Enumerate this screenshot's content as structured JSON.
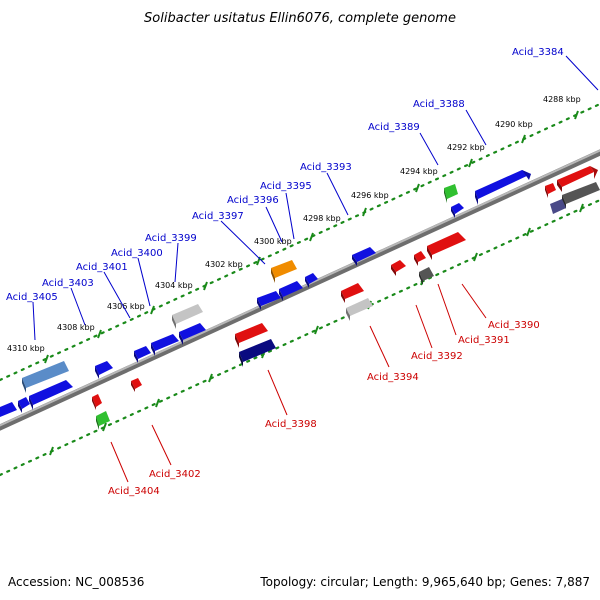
{
  "title": "Solibacter usitatus Ellin6076, complete genome",
  "footer": {
    "accession": "Accession: NC_008536",
    "topology": "Topology: circular; Length: 9,965,640 bp; Genes: 7,887"
  },
  "kbp_labels": [
    "4288 kbp",
    "4290 kbp",
    "4292 kbp",
    "4294 kbp",
    "4296 kbp",
    "4298 kbp",
    "4300 kbp",
    "4302 kbp",
    "4304 kbp",
    "4306 kbp",
    "4308 kbp",
    "4310 kbp"
  ],
  "forward_labels": [
    "Acid_3384",
    "Acid_3388",
    "Acid_3389",
    "Acid_3393",
    "Acid_3395",
    "Acid_3396",
    "Acid_3397",
    "Acid_3399",
    "Acid_3400",
    "Acid_3401",
    "Acid_3403",
    "Acid_3405"
  ],
  "reverse_labels": [
    "Acid_3390",
    "Acid_3391",
    "Acid_3392",
    "Acid_3394",
    "Acid_3398",
    "Acid_3402",
    "Acid_3404"
  ],
  "colors": {
    "forward_gene": "#1010e0",
    "reverse_gene": "#e01010",
    "orange_gene": "#f08c00",
    "green_gene": "#30c030",
    "gray_gene": "#a0a0a0",
    "steelblue_gene": "#5a8cc8",
    "navy_gene": "#0a0a80",
    "darkgray_gene": "#555555",
    "backbone": "#888888",
    "scale_dots": "#1a8a1a",
    "label_blue": "#0000cc",
    "label_red": "#cc0000"
  }
}
